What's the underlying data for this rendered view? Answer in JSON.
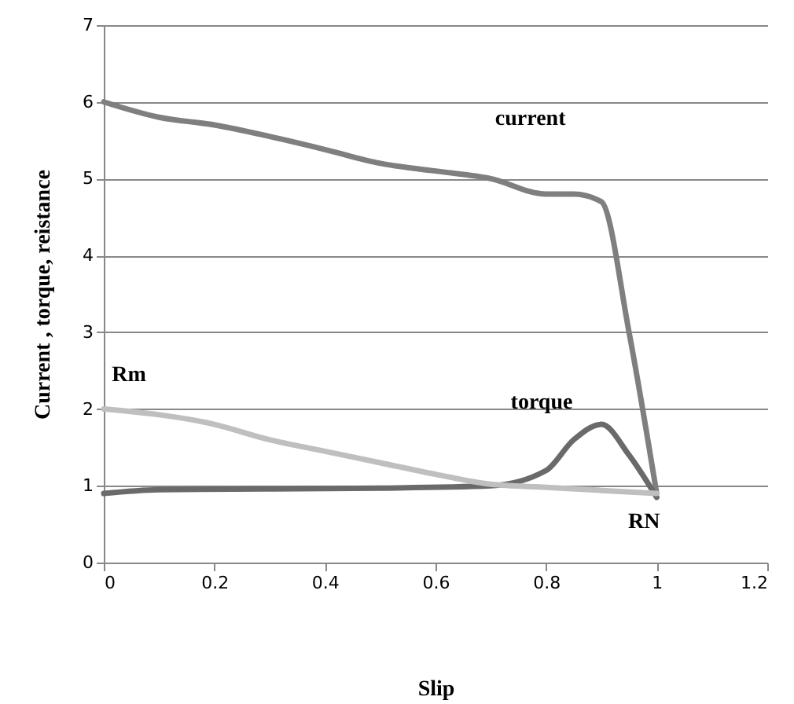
{
  "chart_data": {
    "type": "line",
    "xlabel": "Slip",
    "ylabel": "Current , torque,  reistance",
    "xlim": [
      0,
      1.2
    ],
    "xticks": [
      0,
      0.2,
      0.4,
      0.6,
      0.8,
      1,
      1.2
    ],
    "ylim": [
      0,
      7
    ],
    "yticks": [
      0,
      1,
      2,
      3,
      4,
      5,
      6,
      7
    ],
    "grid": "y",
    "legend": false,
    "marker": "none",
    "line_style": "solid",
    "series": [
      {
        "name": "current",
        "color": "#7f7f7f",
        "x": [
          0,
          0.1,
          0.2,
          0.3,
          0.4,
          0.5,
          0.6,
          0.7,
          0.8,
          0.85,
          0.9,
          0.95,
          1
        ],
        "values": [
          6,
          5.8,
          5.7,
          5.55,
          5.38,
          5.2,
          5.1,
          5,
          4.8,
          4.8,
          4.7,
          3,
          0.9
        ]
      },
      {
        "name": "torque",
        "color": "#6a6a6a",
        "x": [
          0,
          0.1,
          0.3,
          0.5,
          0.7,
          0.8,
          0.85,
          0.9,
          0.95,
          1
        ],
        "values": [
          0.9,
          0.95,
          0.96,
          0.97,
          1,
          1.2,
          1.6,
          1.8,
          1.4,
          0.85
        ]
      },
      {
        "name": "Rm",
        "color": "#bfbfbf",
        "x": [
          0,
          0.2,
          0.3,
          0.4,
          0.5,
          0.6,
          0.7,
          0.8,
          1
        ],
        "values": [
          2,
          1.8,
          1.6,
          1.45,
          1.3,
          1.15,
          1.02,
          0.98,
          0.9
        ]
      }
    ],
    "annotations": [
      {
        "text": "RN",
        "x": 1,
        "y": 0.9
      }
    ]
  }
}
